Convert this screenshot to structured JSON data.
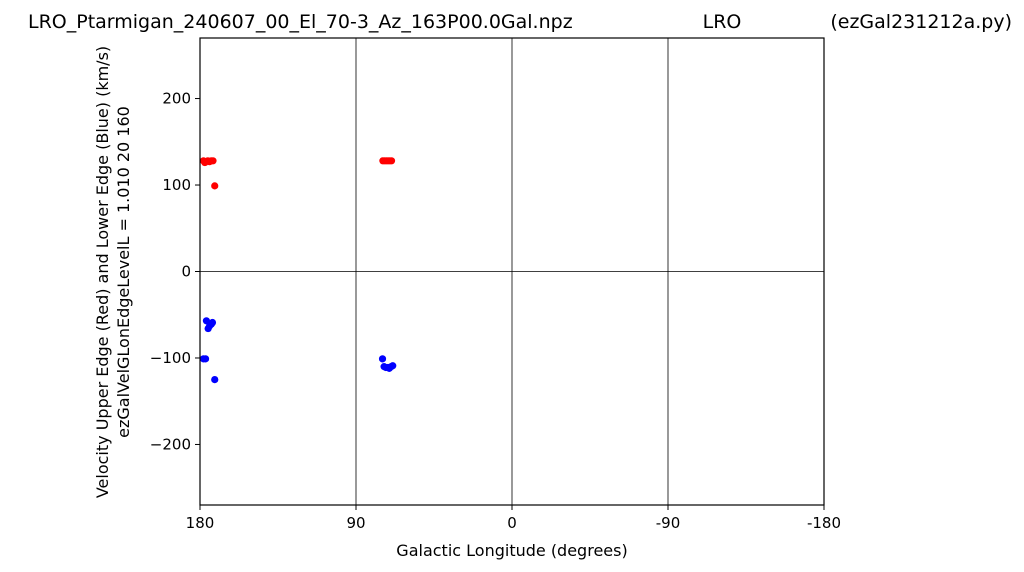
{
  "chart_data": {
    "type": "scatter",
    "title_left": "LRO_Ptarmigan_240607_00_El_70-3_Az_163P00.0Gal.npz",
    "title_center": "LRO",
    "title_right": "(ezGal231212a.py)",
    "xlabel": "Galactic Longitude (degrees)",
    "ylabel_line1": "Velocity Upper Edge (Red) and Lower Edge (Blue)  (km/s)",
    "ylabel_line2": "ezGalVelGLonEdgeLevelL = 1.010  20  160",
    "xlim": [
      180,
      -180
    ],
    "ylim": [
      -270,
      270
    ],
    "x_ticks": [
      180,
      90,
      0,
      -90,
      -180
    ],
    "x_tick_labels": [
      "180",
      "90",
      "0",
      "-90",
      "-180"
    ],
    "y_ticks": [
      200,
      100,
      0,
      -100,
      -200
    ],
    "y_tick_labels": [
      "200",
      "100",
      "0",
      "−100",
      "−200"
    ],
    "grid": true,
    "series": [
      {
        "color": "#ff0000",
        "points": [
          [
            178.0,
            128
          ],
          [
            177.2,
            126
          ],
          [
            176.5,
            127
          ],
          [
            175.5,
            128
          ],
          [
            174.5,
            127
          ],
          [
            173.5,
            128
          ],
          [
            172.5,
            128
          ],
          [
            171.5,
            99
          ],
          [
            74.5,
            128
          ],
          [
            73.5,
            128
          ],
          [
            72.5,
            128
          ],
          [
            71.5,
            128
          ],
          [
            70.5,
            128
          ],
          [
            69.5,
            128
          ]
        ]
      },
      {
        "color": "#0000ff",
        "points": [
          [
            178.0,
            -101
          ],
          [
            176.8,
            -101
          ],
          [
            176.3,
            -57
          ],
          [
            175.3,
            -66
          ],
          [
            174.5,
            -63
          ],
          [
            173.5,
            -61
          ],
          [
            172.8,
            -59
          ],
          [
            171.5,
            -125
          ],
          [
            74.7,
            -101
          ],
          [
            73.8,
            -110
          ],
          [
            72.8,
            -111
          ],
          [
            71.5,
            -111
          ],
          [
            70.8,
            -112
          ],
          [
            69.7,
            -110
          ],
          [
            68.8,
            -109
          ]
        ]
      }
    ]
  }
}
